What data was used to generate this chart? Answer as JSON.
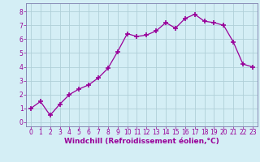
{
  "x": [
    0,
    1,
    2,
    3,
    4,
    5,
    6,
    7,
    8,
    9,
    10,
    11,
    12,
    13,
    14,
    15,
    16,
    17,
    18,
    19,
    20,
    21,
    22,
    23
  ],
  "y": [
    1.0,
    1.5,
    0.5,
    1.3,
    2.0,
    2.4,
    2.7,
    3.2,
    3.9,
    5.1,
    6.4,
    6.2,
    6.3,
    6.6,
    7.2,
    6.8,
    7.5,
    7.8,
    7.3,
    7.2,
    7.0,
    5.8,
    4.2,
    4.0
  ],
  "line_color": "#990099",
  "marker": "+",
  "marker_size": 4,
  "marker_lw": 1.2,
  "bg_color": "#d4eef5",
  "grid_color": "#b0cfd8",
  "xlabel": "Windchill (Refroidissement éolien,°C)",
  "xlabel_color": "#990099",
  "xlabel_fontsize": 6.5,
  "tick_color": "#990099",
  "tick_fontsize": 5.5,
  "xlim": [
    -0.5,
    23.5
  ],
  "ylim": [
    -0.3,
    8.6
  ],
  "yticks": [
    0,
    1,
    2,
    3,
    4,
    5,
    6,
    7,
    8
  ],
  "xticks": [
    0,
    1,
    2,
    3,
    4,
    5,
    6,
    7,
    8,
    9,
    10,
    11,
    12,
    13,
    14,
    15,
    16,
    17,
    18,
    19,
    20,
    21,
    22,
    23
  ],
  "spine_color": "#7a7aaa"
}
